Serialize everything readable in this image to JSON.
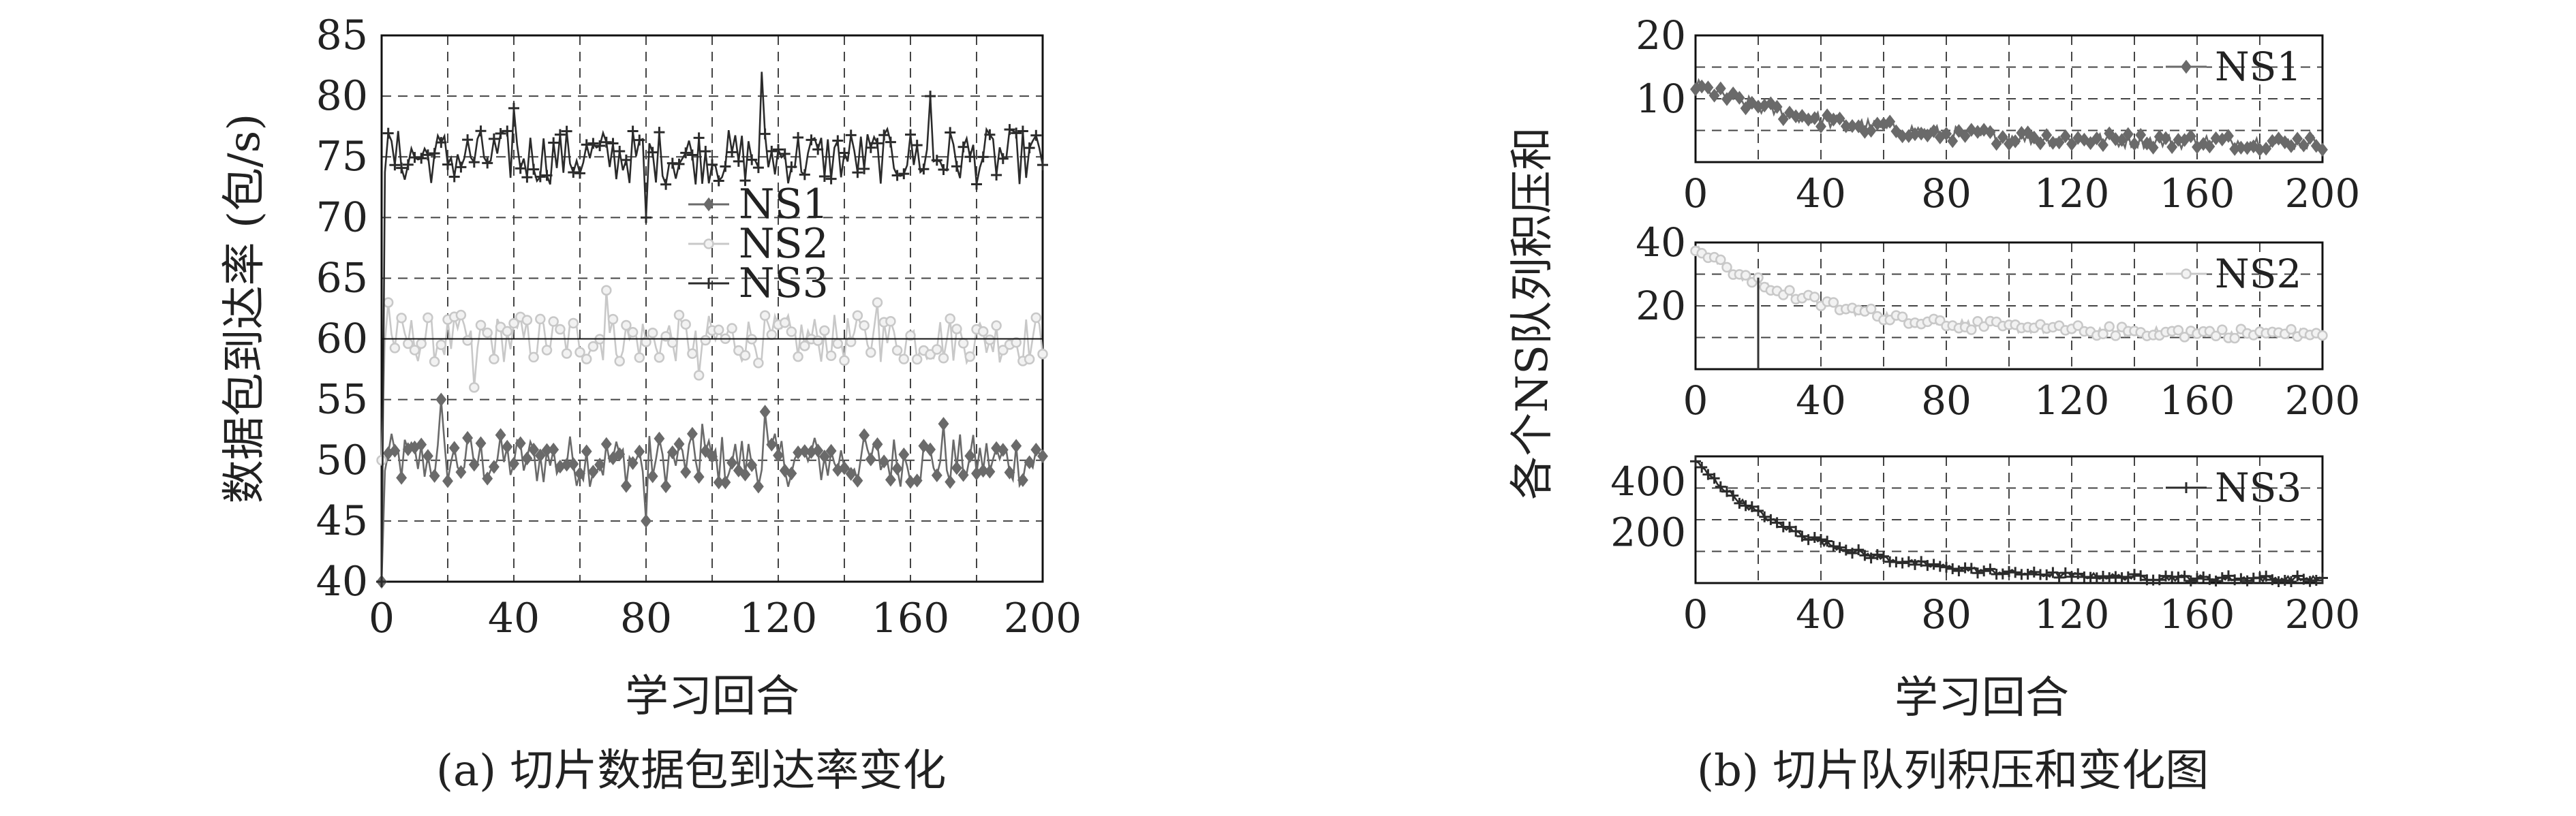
{
  "captions": {
    "a": "(a) 切片数据包到达率变化",
    "b": "(b) 切片队列积压和变化图"
  },
  "colors": {
    "NS1": "#6a6a6a",
    "NS2": "#c8c8c8",
    "NS3": "#2b2b2b"
  },
  "chart_data": [
    {
      "id": "a",
      "type": "line",
      "xlabel": "学习回合",
      "ylabel": "数据包到达率 (包/s)",
      "xlim": [
        0,
        200
      ],
      "ylim": [
        40,
        85
      ],
      "xticks": [
        0,
        40,
        80,
        120,
        160,
        200
      ],
      "yticks": [
        40,
        45,
        50,
        55,
        60,
        65,
        70,
        75,
        80,
        85
      ],
      "grid": true,
      "legend": "center-top",
      "series": [
        {
          "name": "NS1",
          "marker": "diamond",
          "baseline": 50,
          "jitter": 2.2,
          "start": 40,
          "values_note": "",
          "spikes": [
            [
              18,
              55
            ],
            [
              80,
              45
            ],
            [
              97,
              53
            ],
            [
              116,
              54
            ],
            [
              170,
              53
            ]
          ]
        },
        {
          "name": "NS2",
          "marker": "circle",
          "baseline": 60,
          "jitter": 2.0,
          "start": 50,
          "spikes": [
            [
              2,
              63
            ],
            [
              28,
              56
            ],
            [
              68,
              64
            ],
            [
              96,
              57
            ],
            [
              150,
              63
            ]
          ]
        },
        {
          "name": "NS3",
          "marker": "plus",
          "baseline": 75,
          "jitter": 2.3,
          "start": 40,
          "spikes": [
            [
              115,
              82
            ],
            [
              166,
              80
            ],
            [
              80,
              70
            ],
            [
              40,
              79
            ]
          ]
        }
      ]
    },
    {
      "id": "b1",
      "type": "line",
      "xlim": [
        0,
        200
      ],
      "ylim": [
        0,
        20
      ],
      "xticks": [
        40,
        80,
        120,
        160,
        200
      ],
      "yticks": [
        10,
        20
      ],
      "y0label": "0",
      "legend": "top-right",
      "series": [
        {
          "name": "NS1",
          "marker": "diamond",
          "decay_from": 12,
          "decay_to": 3,
          "tau": 45,
          "jitter": 1.2
        }
      ]
    },
    {
      "id": "b2",
      "type": "line",
      "xlim": [
        0,
        200
      ],
      "ylim": [
        0,
        40
      ],
      "xticks": [
        40,
        80,
        120,
        160,
        200
      ],
      "yticks": [
        20,
        40
      ],
      "y0label": "0",
      "legend": "top-right",
      "series": [
        {
          "name": "NS2",
          "marker": "circle",
          "decay_from": 38,
          "decay_to": 11,
          "tau": 40,
          "jitter": 1.6,
          "dip": [
            20,
            0
          ]
        }
      ]
    },
    {
      "id": "b3",
      "type": "line",
      "xlim": [
        0,
        200
      ],
      "ylim": [
        0,
        500
      ],
      "xticks": [
        40,
        80,
        120,
        160,
        200
      ],
      "yticks": [
        200,
        400
      ],
      "y0label": "0",
      "legend": "top-right",
      "xlabel": "学习回合",
      "series": [
        {
          "name": "NS3",
          "marker": "plus",
          "decay_from": 480,
          "decay_to": 15,
          "tau": 35,
          "jitter": 12
        }
      ]
    },
    {
      "id": "b-shared",
      "ylabel": "各个NS队列积压和"
    }
  ]
}
